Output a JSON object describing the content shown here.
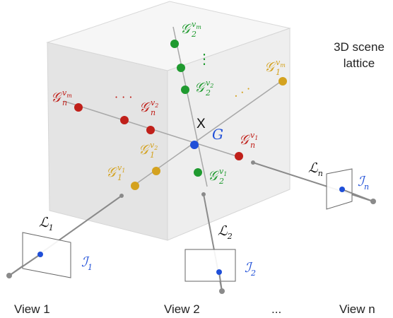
{
  "scene_label": {
    "line1": "3D scene",
    "line2": "lattice"
  },
  "center": {
    "point_label": "X",
    "group_label": "G"
  },
  "colors": {
    "red": "#c0201a",
    "green": "#1f9a2f",
    "yellow": "#d4a21f",
    "blue": "#1f4fd8",
    "gray_line": "#9a9a9a",
    "cube_front": "#e6e6e6",
    "cube_top": "#f5f5f5",
    "cube_side": "#ececec",
    "text": "#222222"
  },
  "lattice_labels": {
    "red_vm": {
      "base": "G",
      "sub": "n",
      "sup": "v",
      "supsub": "m"
    },
    "red_v2": {
      "base": "G",
      "sub": "n",
      "sup": "v",
      "supsub": "2"
    },
    "red_v1": {
      "base": "G",
      "sub": "n",
      "sup": "v",
      "supsub": "1"
    },
    "green_vm": {
      "base": "G",
      "sub": "2",
      "sup": "v",
      "supsub": "m"
    },
    "green_v2": {
      "base": "G",
      "sub": "2",
      "sup": "v",
      "supsub": "2"
    },
    "green_v1": {
      "base": "G",
      "sub": "2",
      "sup": "v",
      "supsub": "1"
    },
    "yellow_vm": {
      "base": "G",
      "sub": "1",
      "sup": "v",
      "supsub": "m"
    },
    "yellow_v2": {
      "base": "G",
      "sub": "1",
      "sup": "v",
      "supsub": "2"
    },
    "yellow_v1": {
      "base": "G",
      "sub": "1",
      "sup": "v",
      "supsub": "1"
    }
  },
  "ellipses": {
    "red": "· · ·",
    "green": "⋮",
    "yellow": "· · ·"
  },
  "rays": [
    {
      "label_base": "L",
      "label_sub": "1",
      "image_base": "I",
      "image_sub": "1"
    },
    {
      "label_base": "L",
      "label_sub": "2",
      "image_base": "I",
      "image_sub": "2"
    },
    {
      "label_base": "L",
      "label_sub": "n",
      "image_base": "I",
      "image_sub": "n"
    }
  ],
  "views": [
    "View 1",
    "View 2",
    "...",
    "View n"
  ]
}
